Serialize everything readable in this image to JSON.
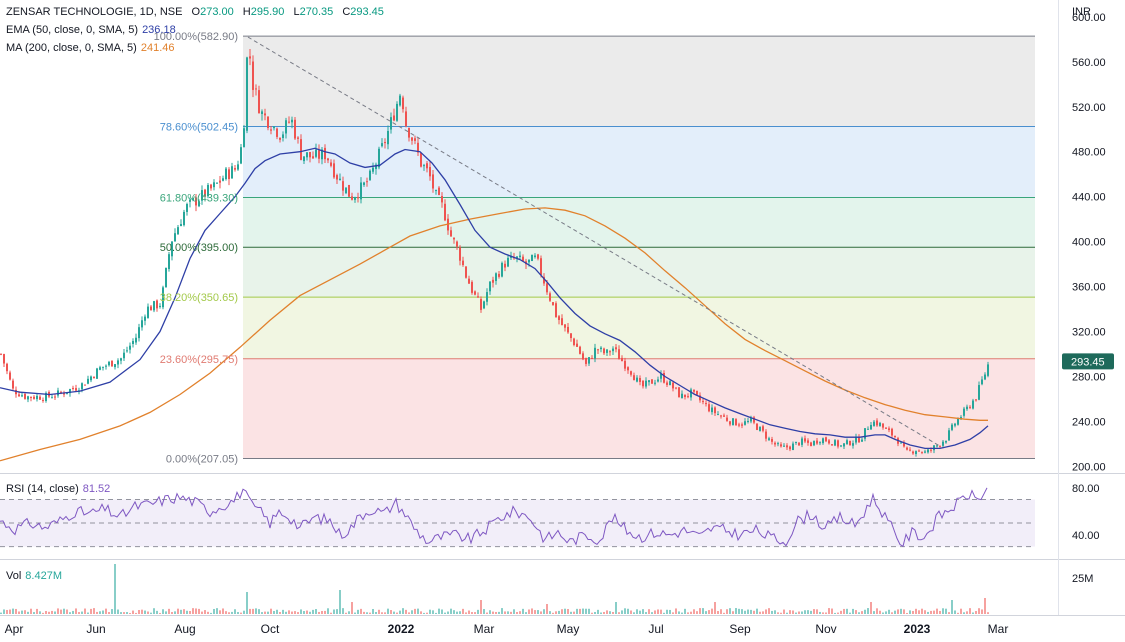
{
  "header": {
    "symbol_line": "ZENSAR TECHNOLOGIE, 1D, NSE",
    "ohlc": [
      {
        "k": "O",
        "v": "273.00"
      },
      {
        "k": "H",
        "v": "295.90"
      },
      {
        "k": "L",
        "v": "270.35"
      },
      {
        "k": "C",
        "v": "293.45"
      }
    ],
    "ema_label": "EMA (50, close, 0, SMA, 5)",
    "ema_value": "236.18",
    "ma_label": "MA (200, close, 0, SMA, 5)",
    "ma_value": "241.46",
    "currency": "INR"
  },
  "colors": {
    "up": "#26a69a",
    "down": "#ef5350",
    "ema": "#2e3fa6",
    "ma": "#e1812c",
    "fib_line": "#787b86",
    "rsi": "#7e57c2",
    "price_badge": "#1e6a5b"
  },
  "chart_data": [
    {
      "type": "candlestick",
      "x_ticks": [
        "Apr",
        "Jun",
        "Aug",
        "Oct",
        "2022",
        "Mar",
        "May",
        "Jul",
        "Sep",
        "Nov",
        "2023",
        "Mar"
      ],
      "ylim": [
        195,
        615
      ],
      "y_ticks": [
        "600.00",
        "560.00",
        "520.00",
        "480.00",
        "440.00",
        "400.00",
        "360.00",
        "320.00",
        "280.00",
        "240.00",
        "200.00"
      ],
      "last_price": "293.45",
      "close_path": [
        [
          0,
          300
        ],
        [
          12,
          268
        ],
        [
          25,
          262
        ],
        [
          45,
          262
        ],
        [
          60,
          265
        ],
        [
          80,
          272
        ],
        [
          100,
          288
        ],
        [
          120,
          296
        ],
        [
          135,
          315
        ],
        [
          145,
          340
        ],
        [
          160,
          345
        ],
        [
          170,
          400
        ],
        [
          185,
          430
        ],
        [
          200,
          440
        ],
        [
          215,
          450
        ],
        [
          225,
          460
        ],
        [
          235,
          465
        ],
        [
          242,
          490
        ],
        [
          247,
          580
        ],
        [
          252,
          540
        ],
        [
          260,
          515
        ],
        [
          270,
          505
        ],
        [
          280,
          495
        ],
        [
          290,
          510
        ],
        [
          300,
          478
        ],
        [
          312,
          475
        ],
        [
          325,
          478
        ],
        [
          335,
          460
        ],
        [
          342,
          450
        ],
        [
          350,
          440
        ],
        [
          358,
          445
        ],
        [
          368,
          455
        ],
        [
          375,
          470
        ],
        [
          385,
          492
        ],
        [
          395,
          520
        ],
        [
          400,
          535
        ],
        [
          405,
          505
        ],
        [
          412,
          490
        ],
        [
          420,
          470
        ],
        [
          428,
          460
        ],
        [
          435,
          440
        ],
        [
          442,
          430
        ],
        [
          450,
          405
        ],
        [
          458,
          390
        ],
        [
          465,
          370
        ],
        [
          472,
          355
        ],
        [
          480,
          340
        ],
        [
          488,
          360
        ],
        [
          495,
          370
        ],
        [
          505,
          382
        ],
        [
          515,
          385
        ],
        [
          525,
          380
        ],
        [
          535,
          385
        ],
        [
          545,
          360
        ],
        [
          555,
          335
        ],
        [
          565,
          320
        ],
        [
          575,
          308
        ],
        [
          585,
          290
        ],
        [
          595,
          305
        ],
        [
          605,
          300
        ],
        [
          612,
          305
        ],
        [
          620,
          295
        ],
        [
          630,
          285
        ],
        [
          640,
          270
        ],
        [
          650,
          275
        ],
        [
          660,
          280
        ],
        [
          670,
          272
        ],
        [
          680,
          262
        ],
        [
          690,
          265
        ],
        [
          700,
          258
        ],
        [
          710,
          250
        ],
        [
          720,
          245
        ],
        [
          730,
          240
        ],
        [
          740,
          238
        ],
        [
          750,
          240
        ],
        [
          760,
          232
        ],
        [
          770,
          222
        ],
        [
          780,
          216
        ],
        [
          790,
          218
        ],
        [
          800,
          222
        ],
        [
          810,
          220
        ],
        [
          820,
          225
        ],
        [
          830,
          222
        ],
        [
          840,
          218
        ],
        [
          850,
          222
        ],
        [
          860,
          225
        ],
        [
          870,
          240
        ],
        [
          878,
          238
        ],
        [
          885,
          232
        ],
        [
          895,
          226
        ],
        [
          905,
          212
        ],
        [
          915,
          215
        ],
        [
          925,
          212
        ],
        [
          935,
          218
        ],
        [
          945,
          225
        ],
        [
          955,
          240
        ],
        [
          965,
          250
        ],
        [
          975,
          262
        ],
        [
          985,
          285
        ],
        [
          988,
          293
        ]
      ],
      "fib_levels": [
        {
          "label": "100.00%(582.90)",
          "value": 582.9,
          "fill": "#ebebeb",
          "line": "#787b86"
        },
        {
          "label": "78.60%(502.45)",
          "value": 502.45,
          "fill": "#e3eefa",
          "line": "#4a8fcf"
        },
        {
          "label": "61.80%(439.30)",
          "value": 439.3,
          "fill": "#e3f4ec",
          "line": "#3aa57b"
        },
        {
          "label": "50.00%(395.00)",
          "value": 395.0,
          "fill": "#e8f3ea",
          "line": "#2e6b3a"
        },
        {
          "label": "38.20%(350.65)",
          "value": 350.65,
          "fill": "#f1f6e2",
          "line": "#a3c94a"
        },
        {
          "label": "23.60%(295.75)",
          "value": 295.75,
          "fill": "#fbe3e4",
          "line": "#e07b72"
        },
        {
          "label": "0.00%(207.05)",
          "value": 207.05,
          "fill": null,
          "line": "#787b86"
        }
      ],
      "ema_path": [
        [
          0,
          270
        ],
        [
          20,
          266
        ],
        [
          50,
          264
        ],
        [
          80,
          267
        ],
        [
          110,
          275
        ],
        [
          140,
          295
        ],
        [
          160,
          320
        ],
        [
          175,
          350
        ],
        [
          190,
          385
        ],
        [
          205,
          410
        ],
        [
          220,
          425
        ],
        [
          235,
          440
        ],
        [
          245,
          452
        ],
        [
          255,
          465
        ],
        [
          265,
          472
        ],
        [
          280,
          478
        ],
        [
          300,
          480
        ],
        [
          315,
          483
        ],
        [
          325,
          480
        ],
        [
          335,
          478
        ],
        [
          350,
          470
        ],
        [
          365,
          466
        ],
        [
          380,
          468
        ],
        [
          395,
          478
        ],
        [
          405,
          482
        ],
        [
          420,
          480
        ],
        [
          432,
          470
        ],
        [
          445,
          455
        ],
        [
          460,
          433
        ],
        [
          475,
          410
        ],
        [
          490,
          395
        ],
        [
          505,
          389
        ],
        [
          520,
          384
        ],
        [
          535,
          376
        ],
        [
          548,
          363
        ],
        [
          560,
          350
        ],
        [
          575,
          336
        ],
        [
          590,
          325
        ],
        [
          605,
          318
        ],
        [
          620,
          312
        ],
        [
          635,
          302
        ],
        [
          650,
          290
        ],
        [
          665,
          280
        ],
        [
          680,
          272
        ],
        [
          695,
          264
        ],
        [
          710,
          258
        ],
        [
          725,
          252
        ],
        [
          740,
          247
        ],
        [
          755,
          242
        ],
        [
          770,
          237
        ],
        [
          785,
          234
        ],
        [
          800,
          231
        ],
        [
          815,
          229
        ],
        [
          830,
          228
        ],
        [
          845,
          226
        ],
        [
          860,
          226
        ],
        [
          875,
          228
        ],
        [
          885,
          228
        ],
        [
          895,
          224
        ],
        [
          910,
          219
        ],
        [
          925,
          216
        ],
        [
          940,
          216
        ],
        [
          955,
          219
        ],
        [
          970,
          224
        ],
        [
          980,
          230
        ],
        [
          988,
          236
        ]
      ],
      "ma_path": [
        [
          0,
          205
        ],
        [
          40,
          215
        ],
        [
          80,
          224
        ],
        [
          120,
          236
        ],
        [
          150,
          248
        ],
        [
          180,
          264
        ],
        [
          210,
          283
        ],
        [
          240,
          306
        ],
        [
          270,
          330
        ],
        [
          300,
          352
        ],
        [
          330,
          366
        ],
        [
          360,
          380
        ],
        [
          390,
          395
        ],
        [
          410,
          405
        ],
        [
          440,
          414
        ],
        [
          470,
          420
        ],
        [
          500,
          425
        ],
        [
          525,
          429
        ],
        [
          545,
          430
        ],
        [
          565,
          428
        ],
        [
          585,
          423
        ],
        [
          605,
          414
        ],
        [
          625,
          403
        ],
        [
          645,
          390
        ],
        [
          665,
          374
        ],
        [
          685,
          359
        ],
        [
          705,
          343
        ],
        [
          725,
          327
        ],
        [
          745,
          313
        ],
        [
          765,
          303
        ],
        [
          785,
          294
        ],
        [
          805,
          285
        ],
        [
          825,
          276
        ],
        [
          845,
          268
        ],
        [
          865,
          261
        ],
        [
          885,
          255
        ],
        [
          905,
          250
        ],
        [
          925,
          246
        ],
        [
          945,
          244
        ],
        [
          965,
          242
        ],
        [
          980,
          241
        ],
        [
          988,
          241
        ]
      ],
      "trendline": {
        "from": [
          248,
          582
        ],
        "to": [
          940,
          218
        ]
      }
    },
    {
      "type": "line",
      "name": "RSI (14, close)",
      "label": "RSI (14, close)",
      "value_label": "81.52",
      "ylim": [
        22,
        90
      ],
      "y_ticks": [
        "80.00",
        "40.00"
      ],
      "bands": [
        70,
        50,
        30
      ],
      "points": [
        [
          0,
          52
        ],
        [
          15,
          45
        ],
        [
          30,
          50
        ],
        [
          45,
          46
        ],
        [
          60,
          52
        ],
        [
          75,
          60
        ],
        [
          90,
          58
        ],
        [
          105,
          62
        ],
        [
          120,
          55
        ],
        [
          135,
          64
        ],
        [
          150,
          66
        ],
        [
          165,
          70
        ],
        [
          180,
          72
        ],
        [
          195,
          68
        ],
        [
          210,
          60
        ],
        [
          225,
          66
        ],
        [
          235,
          70
        ],
        [
          243,
          79
        ],
        [
          250,
          66
        ],
        [
          260,
          60
        ],
        [
          270,
          50
        ],
        [
          280,
          60
        ],
        [
          290,
          55
        ],
        [
          300,
          46
        ],
        [
          315,
          55
        ],
        [
          330,
          52
        ],
        [
          340,
          40
        ],
        [
          350,
          45
        ],
        [
          360,
          56
        ],
        [
          372,
          62
        ],
        [
          385,
          58
        ],
        [
          395,
          68
        ],
        [
          405,
          58
        ],
        [
          415,
          45
        ],
        [
          428,
          34
        ],
        [
          440,
          38
        ],
        [
          455,
          40
        ],
        [
          470,
          36
        ],
        [
          485,
          44
        ],
        [
          500,
          55
        ],
        [
          515,
          60
        ],
        [
          530,
          55
        ],
        [
          545,
          36
        ],
        [
          558,
          42
        ],
        [
          570,
          34
        ],
        [
          585,
          40
        ],
        [
          600,
          36
        ],
        [
          612,
          55
        ],
        [
          625,
          45
        ],
        [
          640,
          38
        ],
        [
          655,
          42
        ],
        [
          670,
          40
        ],
        [
          685,
          44
        ],
        [
          700,
          38
        ],
        [
          712,
          46
        ],
        [
          725,
          44
        ],
        [
          740,
          40
        ],
        [
          755,
          44
        ],
        [
          770,
          38
        ],
        [
          785,
          34
        ],
        [
          798,
          52
        ],
        [
          812,
          58
        ],
        [
          825,
          45
        ],
        [
          840,
          55
        ],
        [
          855,
          48
        ],
        [
          865,
          60
        ],
        [
          872,
          72
        ],
        [
          882,
          60
        ],
        [
          892,
          45
        ],
        [
          902,
          32
        ],
        [
          912,
          42
        ],
        [
          925,
          38
        ],
        [
          938,
          55
        ],
        [
          950,
          62
        ],
        [
          960,
          68
        ],
        [
          968,
          75
        ],
        [
          978,
          70
        ],
        [
          988,
          81
        ]
      ]
    },
    {
      "type": "bar",
      "name": "Vol",
      "label": "Vol",
      "value_label": "8.427M",
      "y_ticks": [
        "25M"
      ]
    }
  ]
}
